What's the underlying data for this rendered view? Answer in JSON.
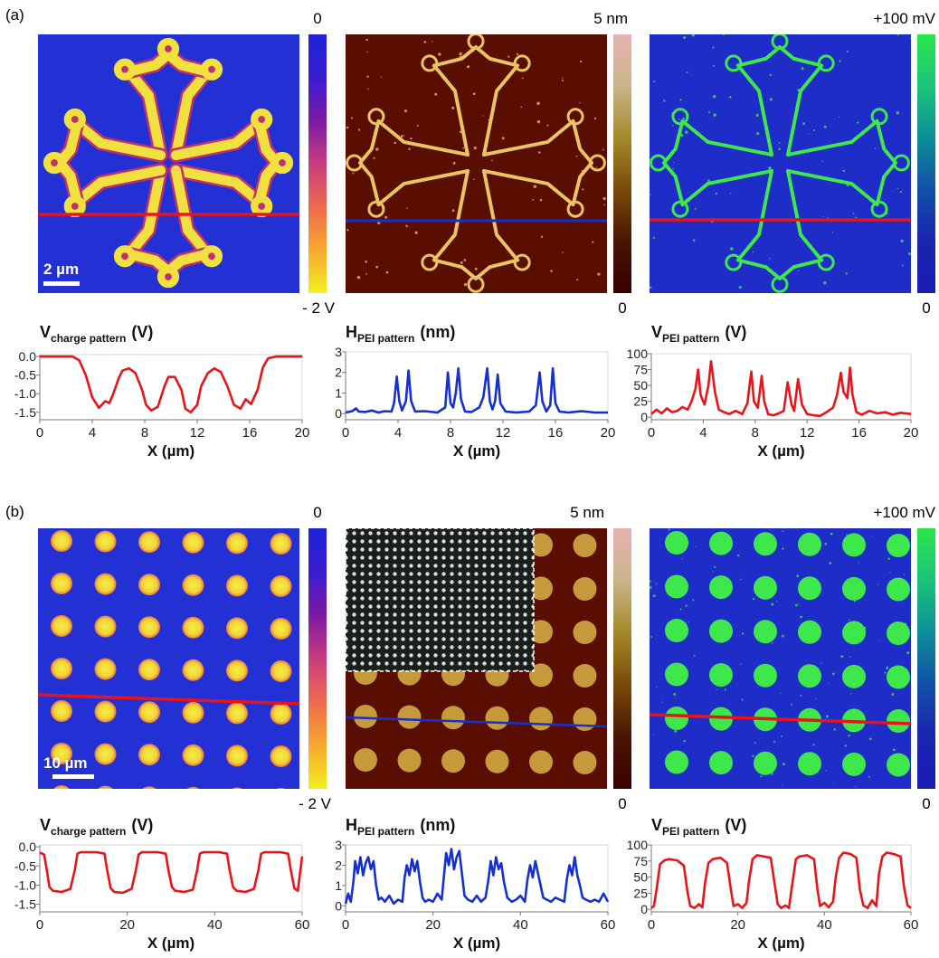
{
  "panel_labels": {
    "a": "(a)",
    "b": "(b)"
  },
  "colorbars": {
    "charge": {
      "top": "0",
      "bottom": "- 2 V",
      "gradient": [
        "#1e22d8",
        "#3a1cd0",
        "#7b1aa4",
        "#c83d7e",
        "#ee6a4e",
        "#f7a830",
        "#f2ef1e"
      ]
    },
    "height": {
      "top": "5 nm",
      "bottom": "0",
      "gradient": [
        "#e6b3b3",
        "#c9b48a",
        "#a48a2a",
        "#7a4a08",
        "#4a1404",
        "#3a0000"
      ]
    },
    "potential": {
      "top": "+100 mV",
      "bottom": "0",
      "gradient": [
        "#2ae64a",
        "#1bc47a",
        "#0c8e98",
        "#1250a8",
        "#1a24b0",
        "#1b1cb2"
      ]
    }
  },
  "scale_bars": {
    "a": "2 µm",
    "b": "10 µm"
  },
  "inset_description": "",
  "colors": {
    "charge_bg": "#2230d4",
    "charge_pattern": "#f0e040",
    "charge_edge": "#c0306e",
    "height_bg": "#5a0e02",
    "height_pattern": "#e8c462",
    "potential_bg": "#1e2cc8",
    "potential_pattern": "#3ee84a",
    "red_line": "#e8141a",
    "blue_line": "#1630d0"
  },
  "chart_data": [
    {
      "id": "a1",
      "type": "line",
      "ylabel_main": "V",
      "ylabel_sub": "charge pattern",
      "ylabel_unit": "(V)",
      "xlabel": "X (µm)",
      "xlim": [
        0,
        20
      ],
      "ylim": [
        -1.7,
        0.05
      ],
      "xticks": [
        0,
        4,
        8,
        12,
        16,
        20
      ],
      "yticks": [
        0.0,
        -0.5,
        -1.0,
        -1.5
      ],
      "ytick_labels": [
        "0.0",
        "-0.5",
        "-1.0",
        "-1.5"
      ],
      "color": "#e8141a",
      "x": [
        0,
        2.5,
        3.0,
        3.5,
        4.0,
        4.5,
        5.0,
        5.3,
        5.6,
        6.0,
        6.3,
        6.8,
        7.3,
        7.8,
        8.1,
        8.5,
        9.0,
        9.5,
        9.8,
        10.3,
        10.8,
        11.1,
        11.5,
        12.0,
        12.3,
        12.8,
        13.3,
        13.8,
        14.3,
        14.8,
        15.3,
        15.7,
        16.1,
        16.6,
        17.0,
        17.4,
        18.0,
        20
      ],
      "y": [
        0,
        0,
        -0.1,
        -0.5,
        -1.1,
        -1.38,
        -1.2,
        -1.25,
        -1.0,
        -0.6,
        -0.38,
        -0.32,
        -0.45,
        -0.9,
        -1.3,
        -1.45,
        -1.35,
        -0.8,
        -0.55,
        -0.55,
        -0.9,
        -1.4,
        -1.5,
        -1.3,
        -0.8,
        -0.45,
        -0.32,
        -0.42,
        -0.8,
        -1.3,
        -1.4,
        -1.15,
        -1.28,
        -0.9,
        -0.3,
        -0.05,
        0,
        0
      ]
    },
    {
      "id": "a2",
      "type": "line",
      "ylabel_main": "H",
      "ylabel_sub": "PEI pattern",
      "ylabel_unit": "(nm)",
      "xlabel": "X (µm)",
      "xlim": [
        0,
        20
      ],
      "ylim": [
        -0.3,
        3
      ],
      "xticks": [
        0,
        4,
        8,
        12,
        16,
        20
      ],
      "yticks": [
        0,
        1,
        2,
        3
      ],
      "ytick_labels": [
        "0",
        "1",
        "2",
        "3"
      ],
      "color": "#1630d0",
      "x": [
        0,
        0.5,
        0.8,
        1.0,
        1.5,
        2,
        2.5,
        3,
        3.5,
        3.7,
        3.9,
        4.1,
        4.3,
        4.6,
        4.8,
        5.0,
        5.3,
        6,
        7,
        7.6,
        7.8,
        8.0,
        8.2,
        8.4,
        8.6,
        8.8,
        9.1,
        9.6,
        10.2,
        10.5,
        10.8,
        11.0,
        11.2,
        11.4,
        11.6,
        11.8,
        12.2,
        13,
        14,
        14.5,
        14.8,
        15.0,
        15.3,
        15.6,
        15.8,
        16.0,
        16.3,
        17,
        18,
        19,
        20
      ],
      "y": [
        0.05,
        0.12,
        0.25,
        0.1,
        0.08,
        0.15,
        0.05,
        0.12,
        0.1,
        0.5,
        1.8,
        0.6,
        0.15,
        0.6,
        2.1,
        0.6,
        0.1,
        0.12,
        0.05,
        0.3,
        2.0,
        0.5,
        0.3,
        1.0,
        2.2,
        0.7,
        0.1,
        0.08,
        0.3,
        0.8,
        2.2,
        0.6,
        0.2,
        0.6,
        1.9,
        0.5,
        0.1,
        0.05,
        0.1,
        0.4,
        2.0,
        0.6,
        0.1,
        0.4,
        2.2,
        0.5,
        0.1,
        0.05,
        0.12,
        0.05,
        0.05
      ]
    },
    {
      "id": "a3",
      "type": "line",
      "ylabel_main": "V",
      "ylabel_sub": "PEI pattern",
      "ylabel_unit": "(V)",
      "xlabel": "X (µm)",
      "xlim": [
        0,
        20
      ],
      "ylim": [
        -4,
        100
      ],
      "xticks": [
        0,
        4,
        8,
        12,
        16,
        20
      ],
      "yticks": [
        0,
        25,
        50,
        75,
        100
      ],
      "ytick_labels": [
        "0",
        "25",
        "50",
        "75",
        "100"
      ],
      "color": "#e8141a",
      "x": [
        0,
        0.4,
        0.8,
        1.2,
        1.6,
        2.0,
        2.4,
        2.8,
        3.1,
        3.4,
        3.6,
        3.8,
        4.1,
        4.4,
        4.6,
        4.9,
        5.2,
        5.6,
        6.0,
        6.5,
        7.0,
        7.4,
        7.7,
        7.9,
        8.2,
        8.5,
        8.7,
        9.0,
        9.4,
        9.8,
        10.2,
        10.5,
        10.8,
        11.0,
        11.3,
        11.6,
        12.0,
        12.5,
        13.0,
        13.5,
        14.0,
        14.3,
        14.6,
        14.8,
        15.1,
        15.3,
        15.5,
        15.8,
        16.2,
        16.8,
        17.4,
        18,
        18.6,
        19.2,
        20
      ],
      "y": [
        5,
        12,
        6,
        14,
        8,
        10,
        16,
        12,
        25,
        45,
        75,
        35,
        20,
        50,
        88,
        40,
        12,
        8,
        5,
        10,
        5,
        22,
        72,
        25,
        15,
        65,
        25,
        5,
        3,
        6,
        10,
        55,
        20,
        10,
        60,
        20,
        5,
        3,
        2,
        8,
        15,
        35,
        70,
        40,
        30,
        78,
        35,
        8,
        4,
        10,
        6,
        8,
        4,
        7,
        5
      ]
    },
    {
      "id": "b1",
      "type": "line",
      "ylabel_main": "V",
      "ylabel_sub": "charge pattern",
      "ylabel_unit": "(V)",
      "xlabel": "X (µm)",
      "xlim": [
        0,
        60
      ],
      "ylim": [
        -1.7,
        0.05
      ],
      "xticks": [
        0,
        20,
        40,
        60
      ],
      "yticks": [
        0.0,
        -0.5,
        -1.0,
        -1.5
      ],
      "ytick_labels": [
        "0.0",
        "-0.5",
        "-1.0",
        "-1.5"
      ],
      "color": "#e8141a",
      "x": [
        0,
        1,
        1.6,
        2.2,
        3,
        5,
        7,
        8,
        8.6,
        9.4,
        10.2,
        13,
        14.8,
        15.4,
        16.2,
        17,
        19,
        21,
        22,
        22.6,
        23.4,
        24.2,
        27,
        28.8,
        29.4,
        30.2,
        31,
        33,
        35,
        36,
        36.6,
        37.4,
        38.2,
        41,
        42.8,
        43.4,
        44.2,
        45,
        47,
        49,
        50,
        50.6,
        51.4,
        52.2,
        55,
        56.8,
        57.4,
        58.2,
        59,
        60
      ],
      "y": [
        -0.15,
        -0.2,
        -0.6,
        -1.05,
        -1.15,
        -1.18,
        -1.1,
        -0.6,
        -0.18,
        -0.14,
        -0.14,
        -0.14,
        -0.18,
        -0.6,
        -1.08,
        -1.18,
        -1.2,
        -1.1,
        -0.6,
        -0.2,
        -0.14,
        -0.14,
        -0.14,
        -0.18,
        -0.6,
        -1.05,
        -1.15,
        -1.18,
        -1.12,
        -0.6,
        -0.18,
        -0.14,
        -0.14,
        -0.14,
        -0.18,
        -0.6,
        -1.05,
        -1.15,
        -1.18,
        -1.1,
        -0.6,
        -0.18,
        -0.14,
        -0.14,
        -0.14,
        -0.18,
        -0.6,
        -1.08,
        -1.15,
        -0.25
      ]
    },
    {
      "id": "b2",
      "type": "line",
      "ylabel_main": "H",
      "ylabel_sub": "PEI pattern",
      "ylabel_unit": "(nm)",
      "xlabel": "X (µm)",
      "xlim": [
        0,
        60
      ],
      "ylim": [
        -0.3,
        3
      ],
      "xticks": [
        0,
        20,
        40,
        60
      ],
      "yticks": [
        0,
        1,
        2,
        3
      ],
      "ytick_labels": [
        "0",
        "1",
        "2",
        "3"
      ],
      "color": "#1630d0",
      "x": [
        0,
        0.6,
        1.2,
        1.8,
        2.2,
        2.8,
        3.4,
        4.0,
        4.6,
        5.2,
        5.8,
        6.4,
        7.0,
        7.6,
        8.2,
        9,
        10,
        11,
        12,
        13,
        13.5,
        14.0,
        14.6,
        15.2,
        15.8,
        16.4,
        17.0,
        17.6,
        18.2,
        19,
        20,
        21,
        22,
        22.5,
        23.0,
        23.6,
        24.2,
        24.8,
        25.4,
        26.0,
        26.6,
        27.2,
        28,
        29,
        30,
        31,
        32,
        32.6,
        33.2,
        33.8,
        34.4,
        35.0,
        35.6,
        36.2,
        37,
        38,
        39,
        40,
        41,
        41.6,
        42.2,
        42.8,
        43.4,
        44.0,
        44.6,
        45.2,
        46,
        47,
        48,
        49,
        50,
        50.6,
        51.2,
        51.8,
        52.4,
        53.0,
        53.6,
        54.2,
        55,
        56,
        57,
        58,
        59,
        60
      ],
      "y": [
        0.1,
        0.6,
        0.2,
        1.2,
        2.2,
        1.6,
        2.4,
        1.5,
        2.1,
        2.4,
        1.8,
        2.2,
        1.0,
        0.3,
        0.4,
        0.2,
        0.5,
        0.1,
        0.3,
        0.2,
        1.4,
        2.0,
        1.5,
        2.3,
        1.7,
        2.2,
        1.2,
        0.4,
        0.2,
        0.3,
        0.2,
        0.6,
        0.3,
        1.5,
        2.6,
        2.0,
        2.8,
        1.8,
        2.4,
        2.7,
        1.6,
        0.5,
        0.3,
        0.2,
        0.5,
        0.2,
        0.4,
        1.2,
        2.2,
        1.5,
        2.4,
        1.8,
        2.1,
        1.2,
        0.4,
        0.2,
        0.3,
        0.5,
        0.2,
        1.3,
        2.0,
        1.4,
        2.2,
        1.6,
        1.0,
        0.4,
        0.3,
        0.2,
        0.4,
        0.3,
        0.2,
        1.3,
        2.0,
        1.5,
        2.4,
        1.5,
        1.0,
        0.4,
        0.3,
        0.2,
        0.3,
        0.2,
        0.6,
        0.2
      ]
    },
    {
      "id": "b3",
      "type": "line",
      "ylabel_main": "V",
      "ylabel_sub": "PEI pattern",
      "ylabel_unit": "(V)",
      "xlabel": "X (µm)",
      "xlim": [
        0,
        60
      ],
      "ylim": [
        -4,
        100
      ],
      "xticks": [
        0,
        20,
        40,
        60
      ],
      "yticks": [
        0,
        25,
        50,
        75,
        100
      ],
      "ytick_labels": [
        "0",
        "25",
        "50",
        "75",
        "100"
      ],
      "color": "#e8141a",
      "x": [
        0,
        0.6,
        1.2,
        2,
        3,
        4,
        6,
        7.5,
        8.4,
        9,
        10,
        11,
        11.8,
        12.4,
        13.2,
        14.2,
        16,
        17.5,
        18.4,
        19,
        20,
        21,
        22,
        22.6,
        23.4,
        24.4,
        26,
        27.6,
        28.6,
        29.2,
        30,
        31,
        31.8,
        32.6,
        33.4,
        34.2,
        36,
        37.6,
        38.4,
        39,
        40,
        41,
        42,
        42.6,
        43.4,
        44.4,
        46,
        47.4,
        48.2,
        49,
        50,
        51,
        52,
        52.6,
        53.4,
        54.4,
        56,
        57.6,
        58.4,
        59.2,
        60
      ],
      "y": [
        2,
        5,
        30,
        70,
        76,
        78,
        76,
        68,
        25,
        5,
        2,
        8,
        3,
        40,
        72,
        78,
        80,
        72,
        30,
        5,
        8,
        2,
        10,
        45,
        78,
        84,
        82,
        80,
        35,
        8,
        2,
        6,
        2,
        40,
        78,
        82,
        84,
        78,
        30,
        5,
        10,
        3,
        12,
        50,
        80,
        88,
        86,
        80,
        30,
        6,
        2,
        14,
        5,
        55,
        82,
        88,
        86,
        82,
        35,
        6,
        2
      ]
    }
  ]
}
